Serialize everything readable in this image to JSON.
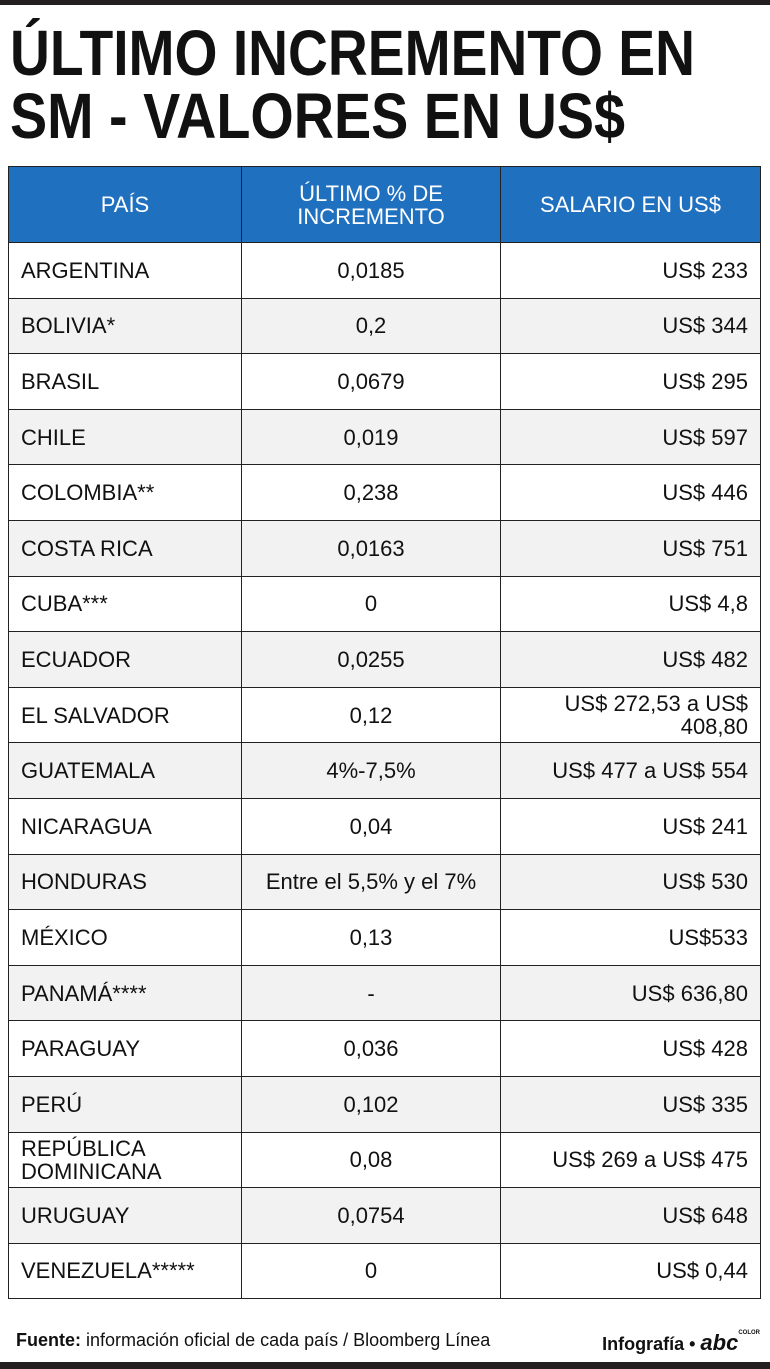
{
  "header": {
    "title_lines": [
      "ÚLTIMO INCREMENTO EN",
      "SM - VALORES EN US$"
    ]
  },
  "table": {
    "columns": [
      "PAÍS",
      "ÚLTIMO % DE INCREMENTO",
      "SALARIO EN US$"
    ],
    "rows": [
      [
        "ARGENTINA",
        "0,0185",
        "US$ 233"
      ],
      [
        "BOLIVIA*",
        "0,2",
        "US$ 344"
      ],
      [
        "BRASIL",
        "0,0679",
        "US$ 295"
      ],
      [
        "CHILE",
        "0,019",
        "US$ 597"
      ],
      [
        "COLOMBIA**",
        "0,238",
        "US$ 446"
      ],
      [
        "COSTA RICA",
        "0,0163",
        "US$ 751"
      ],
      [
        "CUBA***",
        "0",
        "US$ 4,8"
      ],
      [
        "ECUADOR",
        "0,0255",
        "US$ 482"
      ],
      [
        "EL SALVADOR",
        "0,12",
        "US$ 272,53 a US$ 408,80"
      ],
      [
        "GUATEMALA",
        "4%-7,5%",
        "US$ 477 a US$ 554"
      ],
      [
        "NICARAGUA",
        "0,04",
        "US$ 241"
      ],
      [
        "HONDURAS",
        "Entre el 5,5% y el 7%",
        "US$ 530"
      ],
      [
        "MÉXICO",
        "0,13",
        "US$533"
      ],
      [
        "PANAMÁ****",
        "-",
        "US$ 636,80"
      ],
      [
        "PARAGUAY",
        "0,036",
        "US$ 428"
      ],
      [
        "PERÚ",
        "0,102",
        "US$ 335"
      ],
      [
        "REPÚBLICA DOMINICANA",
        "0,08",
        "US$ 269 a US$ 475"
      ],
      [
        "URUGUAY",
        "0,0754",
        "US$ 648"
      ],
      [
        "VENEZUELA*****",
        "0",
        "US$ 0,44"
      ]
    ]
  },
  "footer": {
    "source_label": "Fuente:",
    "source": "información oficial de cada país / Bloomberg Línea",
    "credit": "Infografía",
    "logo": "abc",
    "logo_sub": "COLOR"
  }
}
